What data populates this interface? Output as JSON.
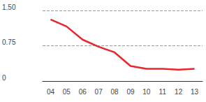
{
  "chart_data": {
    "type": "line",
    "categories": [
      "04",
      "05",
      "06",
      "07",
      "08",
      "09",
      "10",
      "11",
      "12",
      "13"
    ],
    "values": [
      1.31,
      1.16,
      0.88,
      0.73,
      0.61,
      0.32,
      0.26,
      0.26,
      0.24,
      0.26
    ],
    "color": "#e8262d",
    "ylim": [
      0,
      1.5
    ],
    "yticks": [
      0,
      0.75,
      {
        "value": 1.5,
        "label": "1.50"
      }
    ],
    "grid": true
  }
}
